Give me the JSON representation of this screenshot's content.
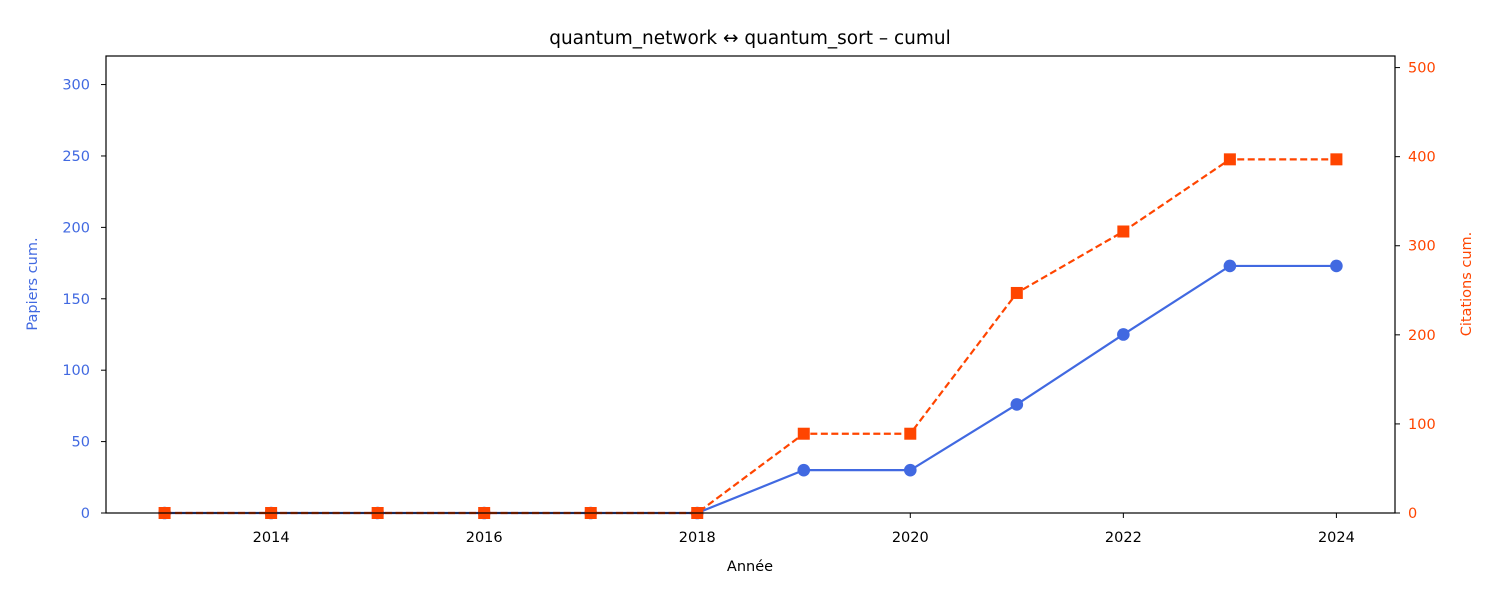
{
  "chart_data": {
    "type": "line",
    "title": "quantum_network  ↔  quantum_sort  –  cumul",
    "xlabel": "Année",
    "ylabel_left": "Papiers cum.",
    "ylabel_right": "Citations cum.",
    "x": [
      2013,
      2014,
      2015,
      2016,
      2017,
      2018,
      2019,
      2020,
      2021,
      2022,
      2023,
      2024
    ],
    "xlim": [
      2012.45,
      2024.55
    ],
    "ylim_left": [
      0,
      320
    ],
    "ylim_right": [
      0,
      513
    ],
    "x_ticks": [
      2014,
      2016,
      2018,
      2020,
      2022,
      2024
    ],
    "y_left_ticks": [
      0,
      50,
      100,
      150,
      200,
      250,
      300
    ],
    "y_right_ticks": [
      0,
      100,
      200,
      300,
      400,
      500
    ],
    "grid": false,
    "series": [
      {
        "axis": "left",
        "color": "#4169E1",
        "marker": "circle",
        "linestyle": "solid",
        "values": [
          0,
          0,
          0,
          0,
          0,
          0,
          30,
          30,
          76,
          125,
          173,
          173
        ]
      },
      {
        "axis": "right",
        "color": "#FF4500",
        "marker": "square",
        "linestyle": "dashed",
        "values": [
          0,
          0,
          0,
          0,
          0,
          0,
          89,
          89,
          247,
          316,
          397,
          397
        ]
      }
    ]
  }
}
